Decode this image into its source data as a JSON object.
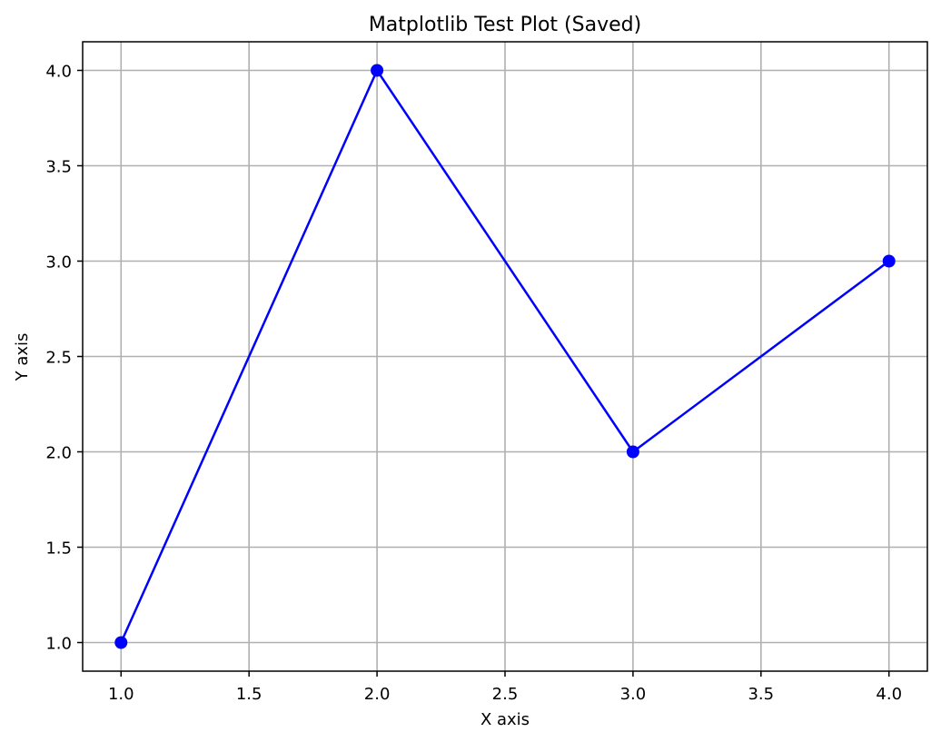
{
  "colors": {
    "background": "#ffffff",
    "grid": "#b0b0b0",
    "axes": "#000000",
    "series": "#0000ff"
  },
  "chart_data": {
    "type": "line",
    "title": "Matplotlib Test Plot (Saved)",
    "xlabel": "X axis",
    "ylabel": "Y axis",
    "xlim": [
      0.85,
      4.15
    ],
    "ylim": [
      0.85,
      4.15
    ],
    "xticks": [
      1.0,
      1.5,
      2.0,
      2.5,
      3.0,
      3.5,
      4.0
    ],
    "yticks": [
      1.0,
      1.5,
      2.0,
      2.5,
      3.0,
      3.5,
      4.0
    ],
    "xtick_labels": [
      "1.0",
      "1.5",
      "2.0",
      "2.5",
      "3.0",
      "3.5",
      "4.0"
    ],
    "ytick_labels": [
      "1.0",
      "1.5",
      "2.0",
      "2.5",
      "3.0",
      "3.5",
      "4.0"
    ],
    "grid": true,
    "series": [
      {
        "x": [
          1,
          2,
          3,
          4
        ],
        "y": [
          1,
          4,
          2,
          3
        ],
        "marker": "circle",
        "color": "#0000ff"
      }
    ]
  }
}
